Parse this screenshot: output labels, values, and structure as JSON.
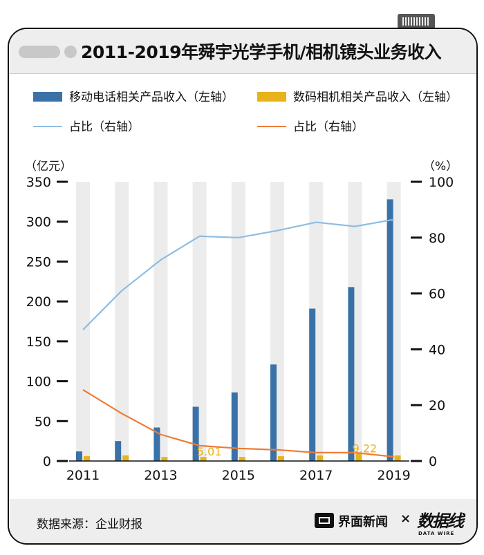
{
  "title": "2011-2019年舜宇光学手机/相机镜头业务收入",
  "footer": {
    "source": "数据来源：企业财报",
    "logo1": "界面新闻",
    "separator": "×",
    "logo2": "数据线",
    "logo2_sub": "DATA WIRE"
  },
  "chart_data": {
    "type": "bar",
    "title": "2011-2019年舜宇光学手机/相机镜头业务收入",
    "left_axis_unit": "（亿元）",
    "right_axis_unit": "（%）",
    "x": [
      2011,
      2012,
      2013,
      2014,
      2015,
      2016,
      2017,
      2018,
      2019
    ],
    "x_tick_labels": [
      "2011",
      "2013",
      "2015",
      "2017",
      "2019"
    ],
    "left_ylim": [
      0,
      350
    ],
    "left_ticks": [
      0,
      50,
      100,
      150,
      200,
      250,
      300,
      350
    ],
    "right_ylim": [
      0,
      100
    ],
    "right_ticks": [
      0,
      20,
      40,
      60,
      80,
      100
    ],
    "series": [
      {
        "name": "移动电话相关产品收入（左轴）",
        "type": "bar",
        "axis": "left",
        "color": "#3a72a8",
        "values": [
          12,
          25,
          42,
          68,
          86,
          121,
          191,
          218,
          328
        ]
      },
      {
        "name": "数码相机相关产品收入（左轴）",
        "type": "bar",
        "axis": "left",
        "color": "#e8b21a",
        "values": [
          6,
          7,
          5,
          5.01,
          5,
          6,
          7,
          9.22,
          7
        ]
      },
      {
        "name": "占比（右轴）",
        "type": "line",
        "axis": "right",
        "color": "#8dbde3",
        "values": [
          47,
          61,
          72,
          80.5,
          80,
          82.5,
          85.5,
          84,
          86.5
        ]
      },
      {
        "name": "占比（右轴）",
        "type": "line",
        "axis": "right",
        "color": "#ef7b33",
        "values": [
          25.5,
          17,
          9.5,
          5.5,
          4.5,
          4,
          3,
          3,
          1.5
        ]
      }
    ],
    "annotations": [
      {
        "series": 1,
        "index": 3,
        "text": "5.01"
      },
      {
        "series": 1,
        "index": 7,
        "text": "9.22"
      }
    ],
    "legend": "top",
    "grid": false
  }
}
